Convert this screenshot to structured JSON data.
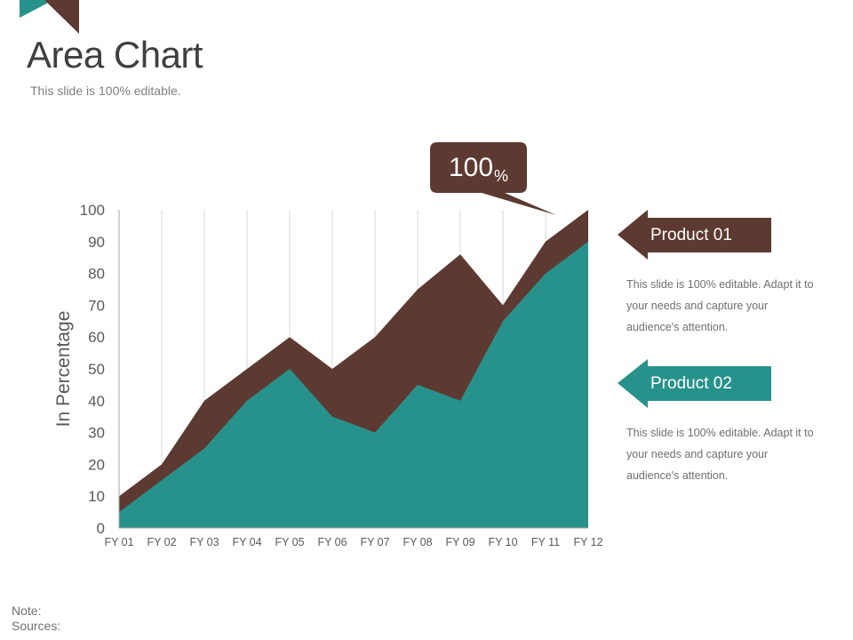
{
  "slide": {
    "title": "Area Chart",
    "subtitle": "This slide is 100% editable."
  },
  "callout": {
    "value": "100",
    "unit": "%"
  },
  "products": [
    {
      "label": "Product 01",
      "color": "#5d3a31",
      "description": "This slide is 100% editable. Adapt it to your needs and capture your audience's attention."
    },
    {
      "label": "Product 02",
      "color": "#27928b",
      "description": "This slide is 100% editable. Adapt it to your needs and capture your audience's attention."
    }
  ],
  "footer": {
    "note": "Note:",
    "sources": "Sources:"
  },
  "chart_data": {
    "type": "area",
    "ylabel": "In Percentage",
    "xlabel": "",
    "ylim": [
      0,
      100
    ],
    "yticks": [
      0,
      10,
      20,
      30,
      40,
      50,
      60,
      70,
      80,
      90,
      100
    ],
    "grid": "vertical",
    "categories": [
      "FY 01",
      "FY 02",
      "FY 03",
      "FY 04",
      "FY 05",
      "FY 06",
      "FY 07",
      "FY 08",
      "FY 09",
      "FY 10",
      "FY 11",
      "FY 12"
    ],
    "series": [
      {
        "name": "Product 01",
        "color": "#5d3a31",
        "values": [
          10,
          20,
          40,
          50,
          60,
          50,
          60,
          75,
          86,
          70,
          90,
          100
        ]
      },
      {
        "name": "Product 02",
        "color": "#27928b",
        "values": [
          5,
          15,
          25,
          40,
          50,
          35,
          30,
          45,
          40,
          65,
          80,
          90
        ]
      }
    ]
  }
}
